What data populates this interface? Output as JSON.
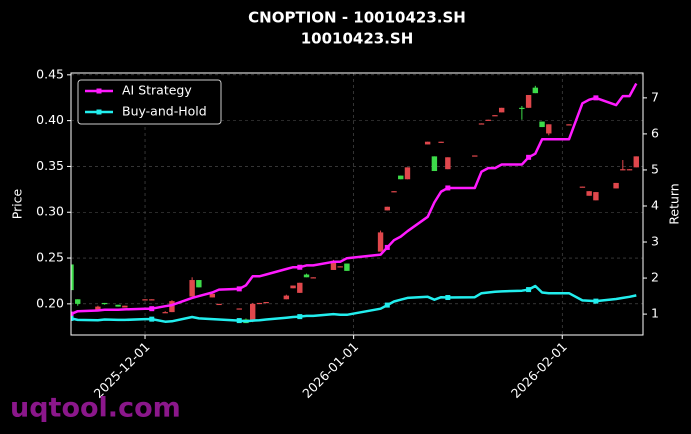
{
  "chart_data": {
    "type": "candlestick",
    "title": "CNOPTION - 10010423.SH",
    "subtitle": "10010423.SH",
    "ylabel": "Price",
    "y2label": "Return",
    "watermark": "uqtool.com",
    "x": [
      "2025-11-20",
      "2025-11-21",
      "2025-11-24",
      "2025-11-25",
      "2025-11-27",
      "2025-11-28",
      "2025-12-01",
      "2025-12-02",
      "2025-12-04",
      "2025-12-05",
      "2025-12-08",
      "2025-12-09",
      "2025-12-11",
      "2025-12-12",
      "2025-12-15",
      "2025-12-16",
      "2025-12-17",
      "2025-12-18",
      "2025-12-19",
      "2025-12-22",
      "2025-12-23",
      "2025-12-24",
      "2025-12-25",
      "2025-12-26",
      "2025-12-29",
      "2025-12-30",
      "2025-12-31",
      "2026-01-05",
      "2026-01-06",
      "2026-01-07",
      "2026-01-08",
      "2026-01-09",
      "2026-01-12",
      "2026-01-13",
      "2026-01-14",
      "2026-01-15",
      "2026-01-19",
      "2026-01-20",
      "2026-01-21",
      "2026-01-22",
      "2026-01-23",
      "2026-01-26",
      "2026-01-27",
      "2026-01-28",
      "2026-01-29",
      "2026-01-30",
      "2026-02-02",
      "2026-02-04",
      "2026-02-05",
      "2026-02-06",
      "2026-02-09",
      "2026-02-10",
      "2026-02-11",
      "2026-02-12"
    ],
    "open": [
      0.215,
      0.2,
      0.197,
      0.2,
      0.197,
      0.198,
      0.205,
      0.205,
      0.191,
      0.203,
      0.226,
      0.218,
      0.211,
      0.2,
      0.195,
      0.179,
      0.2,
      0.201,
      0.202,
      0.209,
      0.22,
      0.223,
      0.229,
      0.229,
      0.247,
      0.241,
      0.236,
      0.278,
      0.306,
      0.323,
      0.336,
      0.349,
      0.377,
      0.345,
      0.377,
      0.36,
      0.362,
      0.397,
      0.401,
      0.406,
      0.414,
      0.413,
      0.428,
      0.43,
      0.393,
      0.396,
      0.396,
      0.328,
      0.323,
      0.322,
      0.332,
      0.347,
      0.347,
      0.361
    ],
    "high": [
      0.245,
      0.205,
      0.198,
      0.201,
      0.199,
      0.198,
      0.205,
      0.205,
      0.192,
      0.204,
      0.229,
      0.226,
      0.211,
      0.2,
      0.195,
      0.184,
      0.201,
      0.201,
      0.202,
      0.21,
      0.22,
      0.223,
      0.233,
      0.229,
      0.248,
      0.241,
      0.244,
      0.28,
      0.306,
      0.323,
      0.34,
      0.349,
      0.377,
      0.361,
      0.377,
      0.36,
      0.362,
      0.397,
      0.401,
      0.406,
      0.414,
      0.416,
      0.428,
      0.438,
      0.399,
      0.396,
      0.396,
      0.328,
      0.323,
      0.322,
      0.332,
      0.357,
      0.347,
      0.361
    ],
    "low": [
      0.215,
      0.198,
      0.192,
      0.199,
      0.197,
      0.196,
      0.204,
      0.204,
      0.19,
      0.191,
      0.208,
      0.218,
      0.207,
      0.199,
      0.194,
      0.179,
      0.18,
      0.2,
      0.201,
      0.205,
      0.217,
      0.212,
      0.229,
      0.228,
      0.237,
      0.24,
      0.236,
      0.257,
      0.302,
      0.322,
      0.336,
      0.336,
      0.374,
      0.345,
      0.376,
      0.347,
      0.361,
      0.396,
      0.4,
      0.405,
      0.409,
      0.401,
      0.414,
      0.43,
      0.393,
      0.384,
      0.395,
      0.327,
      0.318,
      0.313,
      0.326,
      0.346,
      0.346,
      0.349
    ],
    "close": [
      0.243,
      0.205,
      0.192,
      0.201,
      0.199,
      0.196,
      0.204,
      0.204,
      0.19,
      0.191,
      0.208,
      0.226,
      0.207,
      0.199,
      0.194,
      0.183,
      0.182,
      0.2,
      0.201,
      0.205,
      0.217,
      0.212,
      0.232,
      0.228,
      0.237,
      0.24,
      0.244,
      0.257,
      0.302,
      0.322,
      0.34,
      0.336,
      0.374,
      0.361,
      0.376,
      0.347,
      0.361,
      0.396,
      0.4,
      0.405,
      0.409,
      0.414,
      0.414,
      0.436,
      0.399,
      0.386,
      0.395,
      0.327,
      0.318,
      0.313,
      0.326,
      0.346,
      0.346,
      0.349
    ],
    "up_color": "#3ddc4a",
    "down_color": "#e0474c",
    "series": [
      {
        "name": "AI Strategy",
        "color": "#ff1aff",
        "axis": "y2",
        "values": [
          1.0,
          1.08,
          1.1,
          1.12,
          1.12,
          1.13,
          1.15,
          1.15,
          1.22,
          1.25,
          1.45,
          1.5,
          1.6,
          1.68,
          1.7,
          1.8,
          2.05,
          2.05,
          2.1,
          2.25,
          2.3,
          2.3,
          2.35,
          2.35,
          2.45,
          2.45,
          2.55,
          2.65,
          2.85,
          3.05,
          3.15,
          3.3,
          3.7,
          4.1,
          4.4,
          4.5,
          4.5,
          4.95,
          5.05,
          5.05,
          5.15,
          5.15,
          5.35,
          5.45,
          5.85,
          5.85,
          5.85,
          6.85,
          6.95,
          7.0,
          6.8,
          7.05,
          7.05,
          7.4
        ]
      },
      {
        "name": "Buy-and-Hold",
        "color": "#22eeee",
        "axis": "y2",
        "values": [
          0.88,
          0.84,
          0.83,
          0.85,
          0.84,
          0.84,
          0.86,
          0.86,
          0.79,
          0.8,
          0.92,
          0.88,
          0.86,
          0.85,
          0.82,
          0.8,
          0.82,
          0.83,
          0.85,
          0.9,
          0.92,
          0.93,
          0.95,
          0.95,
          1.0,
          0.98,
          0.98,
          1.15,
          1.25,
          1.35,
          1.4,
          1.45,
          1.48,
          1.4,
          1.47,
          1.46,
          1.47,
          1.58,
          1.6,
          1.62,
          1.63,
          1.65,
          1.68,
          1.78,
          1.6,
          1.58,
          1.58,
          1.38,
          1.37,
          1.36,
          1.42,
          1.45,
          1.48,
          1.52
        ]
      }
    ],
    "xlim": [
      "2025-11-20",
      "2026-02-13"
    ],
    "xticks": [
      "2025-12-01",
      "2026-01-01",
      "2026-02-01"
    ],
    "ylim": [
      0.166,
      0.452
    ],
    "yticks": [
      {
        "value": 0.2,
        "label": "0.20"
      },
      {
        "value": 0.25,
        "label": "0.25"
      },
      {
        "value": 0.3,
        "label": "0.30"
      },
      {
        "value": 0.35,
        "label": "0.35"
      },
      {
        "value": 0.4,
        "label": "0.40"
      },
      {
        "value": 0.45,
        "label": "0.45"
      }
    ],
    "y2lim": [
      0.42,
      7.69
    ],
    "y2ticks": [
      1,
      2,
      3,
      4,
      5,
      6,
      7
    ],
    "grid": true,
    "legend": "upper left"
  }
}
